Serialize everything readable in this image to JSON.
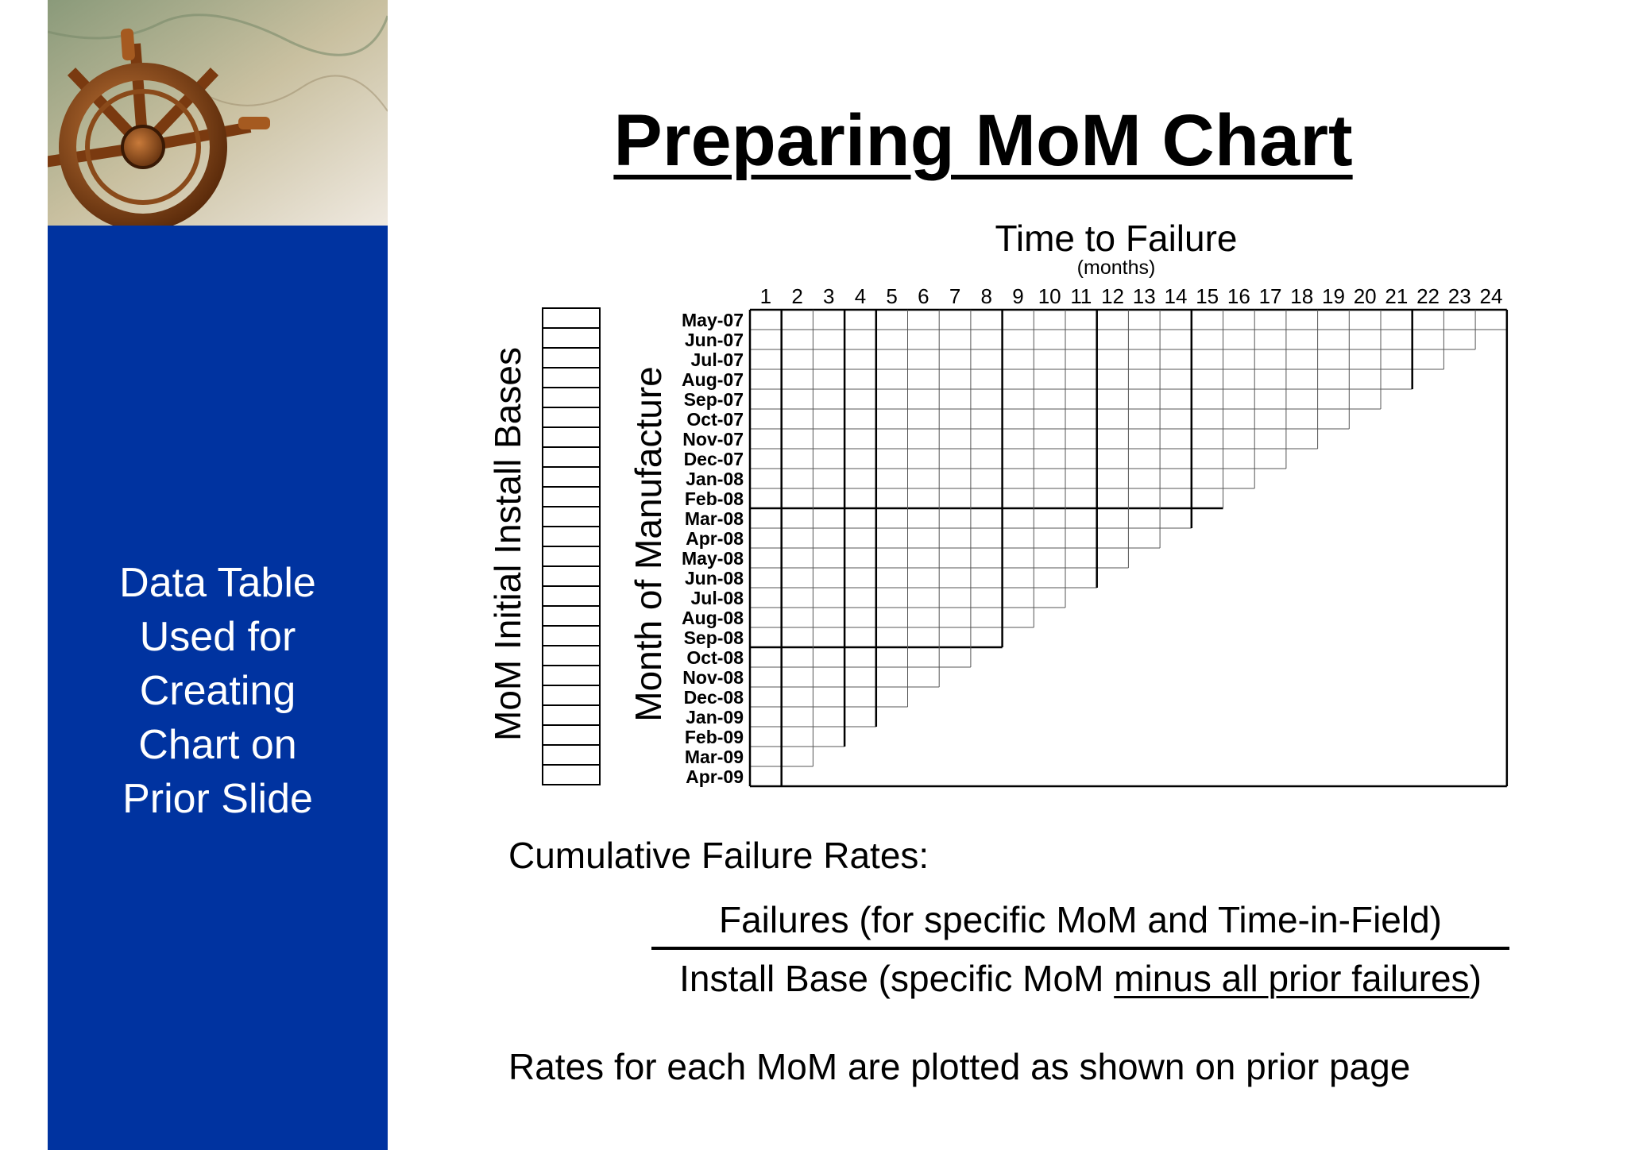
{
  "title": "Preparing MoM Chart",
  "sidebar": {
    "caption": "Data Table\nUsed for\nCreating\nChart on\nPrior Slide"
  },
  "chart_data": {
    "type": "table",
    "title": "Time to Failure",
    "subtitle": "(months)",
    "xlabel": "Time to Failure",
    "ylabel": "Month of Manufacture",
    "install_base_label": "MoM Initial Install Bases",
    "columns": [
      "1",
      "2",
      "3",
      "4",
      "5",
      "6",
      "7",
      "8",
      "9",
      "10",
      "11",
      "12",
      "13",
      "14",
      "15",
      "16",
      "17",
      "18",
      "19",
      "20",
      "21",
      "22",
      "23",
      "24"
    ],
    "rows": [
      "May-07",
      "Jun-07",
      "Jul-07",
      "Aug-07",
      "Sep-07",
      "Oct-07",
      "Nov-07",
      "Dec-07",
      "Jan-08",
      "Feb-08",
      "Mar-08",
      "Apr-08",
      "May-08",
      "Jun-08",
      "Jul-08",
      "Aug-08",
      "Sep-08",
      "Oct-08",
      "Nov-08",
      "Dec-08",
      "Jan-09",
      "Feb-09",
      "Mar-09",
      "Apr-09"
    ]
  },
  "formula": {
    "label": "Cumulative Failure Rates:",
    "numerator": "Failures (for specific MoM and Time-in-Field)",
    "denominator_prefix": "Install Base (specific MoM ",
    "denominator_underlined": "minus all prior failures",
    "denominator_suffix": ")"
  },
  "footer": "Rates for each MoM are plotted as shown on prior page"
}
